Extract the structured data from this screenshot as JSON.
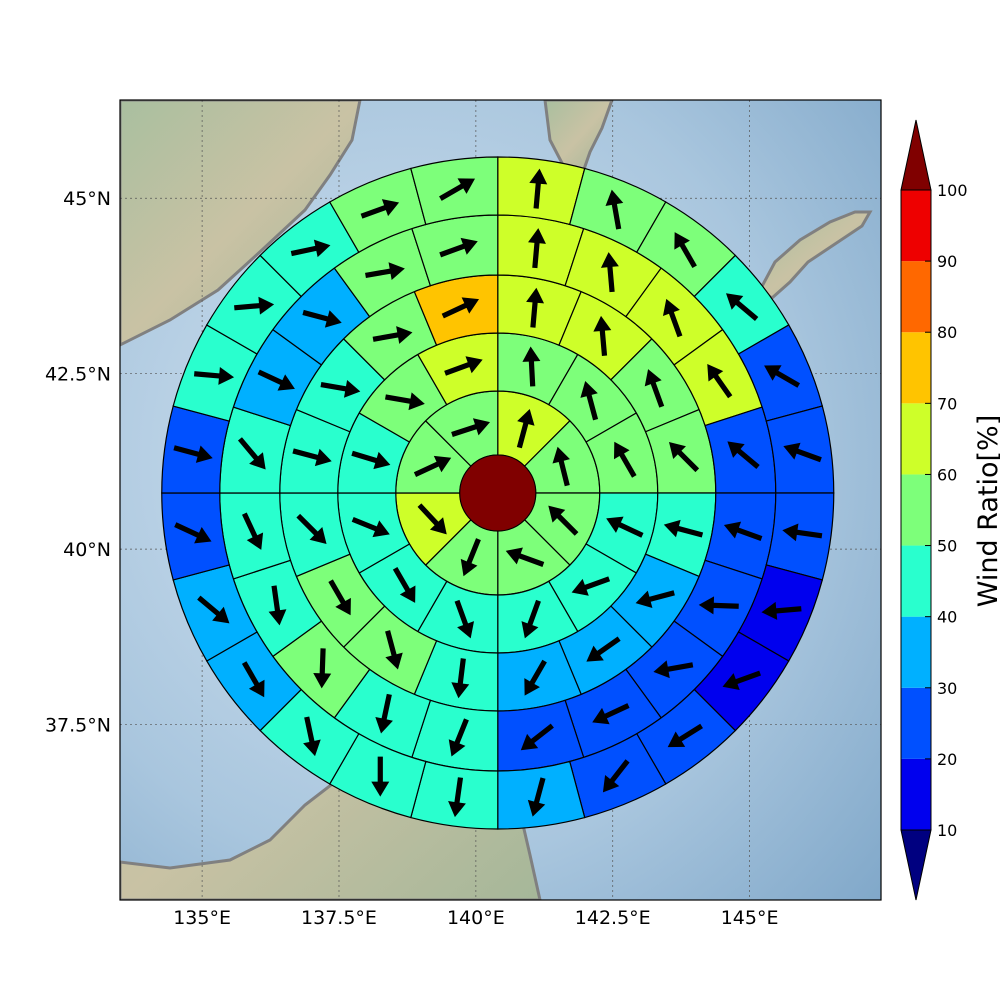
{
  "map": {
    "lon_range": [
      133.5,
      147.4
    ],
    "lat_range": [
      35.0,
      46.4
    ],
    "lon_ticks": [
      {
        "value": 135.0,
        "label": "135°E"
      },
      {
        "value": 137.5,
        "label": "137.5°E"
      },
      {
        "value": 140.0,
        "label": "140°E"
      },
      {
        "value": 142.5,
        "label": "142.5°E"
      },
      {
        "value": 145.0,
        "label": "145°E"
      }
    ],
    "lat_ticks": [
      {
        "value": 45.0,
        "label": "45°N"
      },
      {
        "value": 42.5,
        "label": "42.5°N"
      },
      {
        "value": 40.0,
        "label": "40°N"
      },
      {
        "value": 37.5,
        "label": "37.5°N"
      }
    ],
    "background": {
      "sea": "#a8c6de",
      "land": "#9fb89a",
      "coastline": "#808080"
    },
    "center": {
      "lon": 140.4,
      "lat": 40.8,
      "value": 100,
      "color": "#800000"
    },
    "rings": [
      {
        "sectors": 8,
        "values": [
          60,
          55,
          55,
          50,
          55,
          65,
          55,
          55
        ],
        "arrows": [
          -75,
          -104,
          -135,
          -160,
          -248,
          -313,
          -25,
          -18
        ]
      },
      {
        "sectors": 12,
        "values": [
          55,
          55,
          55,
          45,
          45,
          40,
          45,
          45,
          45,
          45,
          55,
          65
        ],
        "arrows": [
          -93,
          -105,
          -120,
          -155,
          -200,
          -250,
          -290,
          -300,
          -338,
          -343,
          -350,
          -20
        ]
      },
      {
        "sectors": 16,
        "values": [
          65,
          65,
          55,
          55,
          40,
          35,
          35,
          35,
          45,
          55,
          55,
          45,
          45,
          45,
          55,
          75
        ],
        "arrows": [
          -85,
          -95,
          -110,
          -135,
          -165,
          -195,
          -215,
          -240,
          -263,
          -285,
          -300,
          -315,
          -345,
          -350,
          -10,
          -25
        ]
      },
      {
        "sectors": 20,
        "values": [
          65,
          65,
          65,
          65,
          25,
          25,
          25,
          25,
          25,
          25,
          45,
          45,
          55,
          45,
          45,
          45,
          35,
          35,
          55,
          55
        ],
        "arrows": [
          -85,
          -95,
          -110,
          -125,
          -140,
          -160,
          -178,
          -190,
          -205,
          -218,
          -248,
          -258,
          -268,
          -278,
          -295,
          -310,
          -335,
          -345,
          -10,
          -20
        ]
      },
      {
        "sectors": 24,
        "values": [
          65,
          55,
          55,
          45,
          25,
          25,
          25,
          15,
          15,
          25,
          25,
          35,
          45,
          45,
          45,
          35,
          35,
          25,
          25,
          45,
          45,
          45,
          55,
          55
        ],
        "arrows": [
          -85,
          -100,
          -120,
          -140,
          -150,
          -160,
          -172,
          -185,
          -200,
          -212,
          -232,
          -255,
          -262,
          -270,
          -282,
          -300,
          -320,
          -335,
          -345,
          -355,
          -5,
          -12,
          -20,
          -30
        ]
      }
    ]
  },
  "colorbar": {
    "label": "Wind Ratio[%]",
    "tick_values": [
      10,
      20,
      30,
      40,
      50,
      60,
      70,
      80,
      90,
      100
    ],
    "tick_labels": [
      "10",
      "20",
      "30",
      "40",
      "50",
      "60",
      "70",
      "80",
      "90",
      "100"
    ],
    "bins": [
      {
        "min": 10,
        "max": 20,
        "color": "#0000ee"
      },
      {
        "min": 20,
        "max": 30,
        "color": "#0050ff"
      },
      {
        "min": 30,
        "max": 40,
        "color": "#00b0ff"
      },
      {
        "min": 40,
        "max": 50,
        "color": "#29ffce"
      },
      {
        "min": 50,
        "max": 60,
        "color": "#7dff7a"
      },
      {
        "min": 60,
        "max": 70,
        "color": "#ceff29"
      },
      {
        "min": 70,
        "max": 80,
        "color": "#ffc400"
      },
      {
        "min": 80,
        "max": 90,
        "color": "#ff6800"
      },
      {
        "min": 90,
        "max": 100,
        "color": "#ee0000"
      }
    ],
    "under_color": "#000080",
    "over_color": "#800000"
  }
}
